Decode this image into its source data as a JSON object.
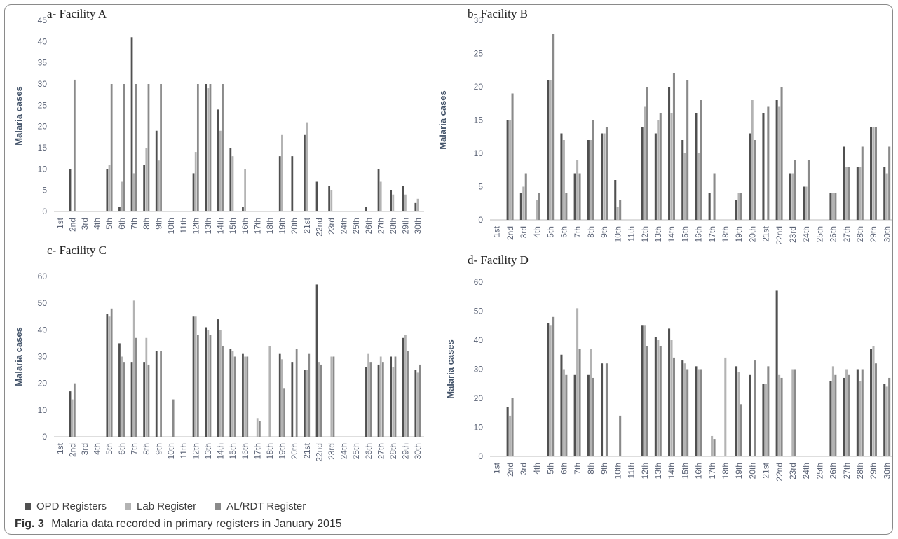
{
  "colors": {
    "opd": "#505050",
    "lab": "#b3b3b3",
    "al": "#8a8a8a"
  },
  "legend": [
    {
      "name": "OPD Registers",
      "color": "#505050"
    },
    {
      "name": "Lab Register",
      "color": "#b3b3b3"
    },
    {
      "name": "AL/RDT Register",
      "color": "#8a8a8a"
    }
  ],
  "caption": {
    "label": "Fig. 3",
    "text": "Malaria data recorded in primary registers in January 2015"
  },
  "chart_data": [
    {
      "type": "bar",
      "title": "a- Facility A",
      "ylabel": "Malaria cases",
      "ylim": [
        0,
        45
      ],
      "yticks": [
        0,
        5,
        10,
        15,
        20,
        25,
        30,
        35,
        40,
        45
      ],
      "grid": false,
      "legend": "bottom",
      "categories": [
        "1st",
        "2nd",
        "3rd",
        "4th",
        "5th",
        "6th",
        "7th",
        "8th",
        "9th",
        "10th",
        "11th",
        "12th",
        "13th",
        "14th",
        "15th",
        "16th",
        "17th",
        "18th",
        "19th",
        "20th",
        "21st",
        "22nd",
        "23rd",
        "24th",
        "25th",
        "26th",
        "27th",
        "28th",
        "29th",
        "30th"
      ],
      "series": [
        {
          "name": "OPD Registers",
          "values": [
            0,
            10,
            0,
            0,
            10,
            1,
            41,
            11,
            19,
            0,
            0,
            9,
            30,
            24,
            15,
            1,
            0,
            0,
            13,
            13,
            18,
            7,
            6,
            0,
            0,
            1,
            10,
            5,
            6,
            2
          ]
        },
        {
          "name": "Lab Register",
          "values": [
            0,
            0,
            0,
            0,
            11,
            7,
            9,
            15,
            12,
            0,
            0,
            14,
            29,
            19,
            13,
            10,
            0,
            0,
            18,
            0,
            21,
            0,
            5,
            0,
            0,
            0,
            7,
            4,
            4,
            3
          ]
        },
        {
          "name": "AL/RDT Register",
          "values": [
            0,
            31,
            0,
            0,
            30,
            30,
            30,
            30,
            30,
            0,
            0,
            30,
            30,
            30,
            0,
            0,
            0,
            0,
            0,
            0,
            0,
            0,
            0,
            0,
            0,
            0,
            0,
            0,
            0,
            0
          ]
        }
      ]
    },
    {
      "type": "bar",
      "title": "b- Facility B",
      "ylabel": "Malaria cases",
      "ylim": [
        0,
        30
      ],
      "yticks": [
        0,
        5,
        10,
        15,
        20,
        25,
        30
      ],
      "grid": false,
      "legend": "bottom",
      "categories": [
        "1st",
        "2nd",
        "3rd",
        "4th",
        "5th",
        "6th",
        "7th",
        "8th",
        "9th",
        "10th",
        "11th",
        "12th",
        "13th",
        "14th",
        "15th",
        "16th",
        "17th",
        "18th",
        "19th",
        "20th",
        "21st",
        "22nd",
        "23rd",
        "24th",
        "25th",
        "26th",
        "27th",
        "28th",
        "29th",
        "30th"
      ],
      "series": [
        {
          "name": "OPD Registers",
          "values": [
            0,
            15,
            4,
            0,
            21,
            13,
            7,
            12,
            13,
            6,
            0,
            14,
            13,
            20,
            12,
            16,
            4,
            0,
            3,
            13,
            16,
            18,
            7,
            5,
            0,
            4,
            11,
            8,
            14,
            8
          ]
        },
        {
          "name": "Lab Register",
          "values": [
            0,
            15,
            5,
            3,
            21,
            12,
            9,
            12,
            13,
            2,
            0,
            17,
            15,
            16,
            10,
            10,
            0,
            0,
            4,
            18,
            0,
            17,
            7,
            5,
            0,
            4,
            8,
            8,
            14,
            7
          ]
        },
        {
          "name": "AL/RDT Register",
          "values": [
            0,
            19,
            7,
            4,
            28,
            4,
            7,
            15,
            14,
            3,
            0,
            20,
            16,
            22,
            21,
            18,
            7,
            0,
            4,
            12,
            17,
            20,
            9,
            9,
            0,
            4,
            8,
            11,
            14,
            11
          ]
        }
      ]
    },
    {
      "type": "bar",
      "title": "c- Facility C",
      "ylabel": "Malaria cases",
      "ylim": [
        0,
        60
      ],
      "yticks": [
        0,
        10,
        20,
        30,
        40,
        50,
        60
      ],
      "grid": false,
      "legend": "bottom",
      "categories": [
        "1st",
        "2nd",
        "3rd",
        "4th",
        "5th",
        "6th",
        "7th",
        "8th",
        "9th",
        "10th",
        "11th",
        "12th",
        "13th",
        "14th",
        "15th",
        "16th",
        "17th",
        "18th",
        "19th",
        "20th",
        "21st",
        "22nd",
        "23rd",
        "24th",
        "25th",
        "26th",
        "27th",
        "28th",
        "29th",
        "30th"
      ],
      "series": [
        {
          "name": "OPD Registers",
          "values": [
            0,
            17,
            0,
            0,
            46,
            35,
            28,
            28,
            32,
            0,
            0,
            45,
            41,
            44,
            33,
            31,
            0,
            0,
            31,
            28,
            25,
            57,
            0,
            0,
            0,
            26,
            27,
            30,
            37,
            25
          ]
        },
        {
          "name": "Lab Register",
          "values": [
            0,
            14,
            0,
            0,
            45,
            30,
            51,
            37,
            0,
            0,
            0,
            45,
            40,
            40,
            32,
            30,
            7,
            34,
            29,
            0,
            25,
            28,
            30,
            0,
            0,
            31,
            30,
            26,
            38,
            24
          ]
        },
        {
          "name": "AL/RDT Register",
          "values": [
            0,
            20,
            0,
            0,
            48,
            28,
            37,
            27,
            32,
            14,
            0,
            38,
            38,
            34,
            30,
            30,
            6,
            0,
            18,
            33,
            31,
            27,
            30,
            0,
            0,
            28,
            28,
            30,
            32,
            27
          ]
        }
      ]
    },
    {
      "type": "bar",
      "title": "d- Facility D",
      "ylabel": "Malaria cases",
      "ylim": [
        0,
        60
      ],
      "yticks": [
        0,
        10,
        20,
        30,
        40,
        50,
        60
      ],
      "grid": false,
      "legend": "bottom",
      "categories": [
        "1st",
        "2nd",
        "3rd",
        "4th",
        "5th",
        "6th",
        "7th",
        "8th",
        "9th",
        "10th",
        "11th",
        "12th",
        "13th",
        "14th",
        "15th",
        "16th",
        "17th",
        "18th",
        "19th",
        "20th",
        "21st",
        "22nd",
        "23rd",
        "24th",
        "25th",
        "26th",
        "27th",
        "28th",
        "29th",
        "30th"
      ],
      "series": [
        {
          "name": "OPD Registers",
          "values": [
            0,
            17,
            0,
            0,
            46,
            35,
            28,
            28,
            32,
            0,
            0,
            45,
            41,
            44,
            33,
            31,
            0,
            0,
            31,
            28,
            25,
            57,
            0,
            0,
            0,
            26,
            27,
            30,
            37,
            25
          ]
        },
        {
          "name": "Lab Register",
          "values": [
            0,
            14,
            0,
            0,
            45,
            30,
            51,
            37,
            0,
            0,
            0,
            45,
            40,
            40,
            32,
            30,
            7,
            34,
            29,
            0,
            25,
            28,
            30,
            0,
            0,
            31,
            30,
            26,
            38,
            24
          ]
        },
        {
          "name": "AL/RDT Register",
          "values": [
            0,
            20,
            0,
            0,
            48,
            28,
            37,
            27,
            32,
            14,
            0,
            38,
            38,
            34,
            30,
            30,
            6,
            0,
            18,
            33,
            31,
            27,
            30,
            0,
            0,
            28,
            28,
            30,
            32,
            27
          ]
        }
      ]
    }
  ]
}
